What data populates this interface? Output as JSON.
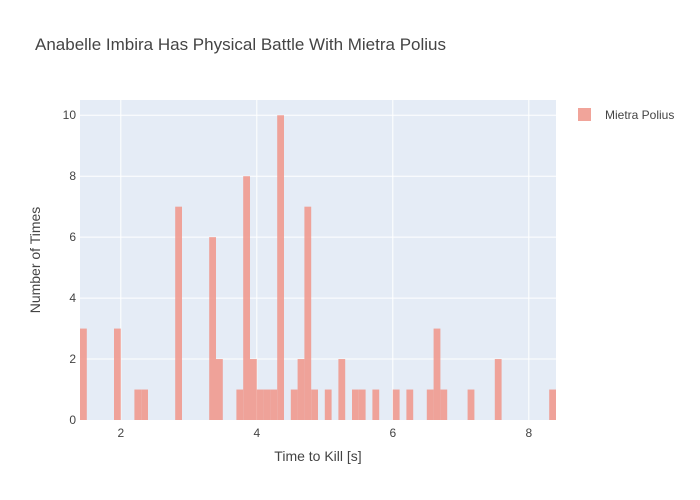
{
  "chart_data": {
    "type": "bar",
    "title": "Anabelle Imbira Has Physical Battle With Mietra Polius",
    "xlabel": "Time to Kill [s]",
    "ylabel": "Number of Times",
    "xlim": [
      1.4,
      8.4
    ],
    "ylim": [
      0,
      10.5
    ],
    "bin_width": 0.1,
    "x_ticks": [
      2,
      4,
      6,
      8
    ],
    "y_ticks": [
      0,
      2,
      4,
      6,
      8,
      10
    ],
    "grid": true,
    "legend_position": "top-right",
    "series": [
      {
        "name": "Mietra Polius",
        "color": "#EF9A8F",
        "bins": [
          {
            "x": 1.4,
            "count": 3
          },
          {
            "x": 1.9,
            "count": 3
          },
          {
            "x": 2.2,
            "count": 1
          },
          {
            "x": 2.3,
            "count": 1
          },
          {
            "x": 2.8,
            "count": 7
          },
          {
            "x": 3.3,
            "count": 6
          },
          {
            "x": 3.4,
            "count": 2
          },
          {
            "x": 3.7,
            "count": 1
          },
          {
            "x": 3.8,
            "count": 8
          },
          {
            "x": 3.9,
            "count": 2
          },
          {
            "x": 4.0,
            "count": 1
          },
          {
            "x": 4.1,
            "count": 1
          },
          {
            "x": 4.2,
            "count": 1
          },
          {
            "x": 4.3,
            "count": 10
          },
          {
            "x": 4.5,
            "count": 1
          },
          {
            "x": 4.6,
            "count": 2
          },
          {
            "x": 4.7,
            "count": 7
          },
          {
            "x": 4.8,
            "count": 1
          },
          {
            "x": 5.0,
            "count": 1
          },
          {
            "x": 5.2,
            "count": 2
          },
          {
            "x": 5.4,
            "count": 1
          },
          {
            "x": 5.5,
            "count": 1
          },
          {
            "x": 5.7,
            "count": 1
          },
          {
            "x": 6.0,
            "count": 1
          },
          {
            "x": 6.2,
            "count": 1
          },
          {
            "x": 6.5,
            "count": 1
          },
          {
            "x": 6.6,
            "count": 3
          },
          {
            "x": 6.7,
            "count": 1
          },
          {
            "x": 7.1,
            "count": 1
          },
          {
            "x": 7.5,
            "count": 2
          },
          {
            "x": 8.3,
            "count": 1
          }
        ]
      }
    ]
  }
}
